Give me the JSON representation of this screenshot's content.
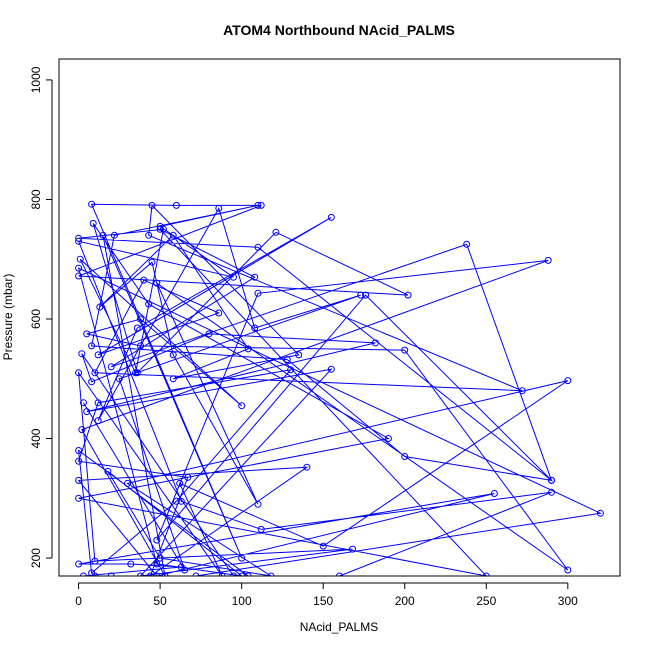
{
  "chart_data": {
    "type": "scatter",
    "title": "ATOM4 Northbound NAcid_PALMS",
    "xlabel": "NAcid_PALMS",
    "ylabel": "Pressure (mbar)",
    "xlim": [
      -12,
      332
    ],
    "ylim": [
      1035,
      170
    ],
    "y_reversed": true,
    "xticks": [
      0,
      50,
      100,
      150,
      200,
      250,
      300
    ],
    "yticks": [
      200,
      400,
      600,
      800,
      1000
    ],
    "grid": false,
    "legend": "none",
    "connect_points": true,
    "point_style": "open-circle",
    "color": "#0000ff",
    "series": [
      {
        "x": [
          20,
          10,
          3,
          63,
          32,
          0,
          255,
          48,
          0,
          140,
          44,
          67,
          0,
          12,
          130,
          60,
          8,
          0,
          104,
          72,
          320,
          0,
          48,
          100,
          18,
          50,
          118,
          30,
          300,
          150,
          62,
          88,
          0,
          10,
          168,
          38,
          155,
          5,
          182,
          80,
          8,
          2,
          95,
          160,
          290,
          112,
          63,
          0,
          95,
          50,
          110,
          22,
          8,
          128,
          200,
          290,
          176,
          48,
          110,
          288,
          2,
          53,
          15,
          100,
          8,
          60,
          112,
          0,
          202,
          121,
          36,
          9,
          43,
          190,
          0,
          250,
          50,
          108,
          20,
          238,
          290,
          110,
          0,
          52,
          35,
          1,
          100,
          38,
          5,
          38,
          200,
          300,
          48,
          110,
          58,
          45,
          13,
          58,
          104,
          58,
          135,
          45,
          43,
          272,
          10,
          40,
          86,
          12,
          155,
          36,
          12,
          86,
          108,
          173,
          25,
          65,
          3
        ],
        "y": [
          170,
          170,
          170,
          185,
          190,
          190,
          308,
          170,
          330,
          352,
          170,
          335,
          362,
          460,
          515,
          295,
          175,
          380,
          170,
          170,
          275,
          685,
          190,
          170,
          345,
          200,
          170,
          325,
          497,
          220,
          325,
          170,
          510,
          195,
          215,
          170,
          516,
          445,
          560,
          575,
          495,
          542,
          170,
          170,
          310,
          248,
          295,
          730,
          670,
          755,
          790,
          740,
          555,
          532,
          370,
          330,
          640,
          230,
          643,
          698,
          415,
          170,
          740,
          200,
          792,
          790,
          790,
          672,
          640,
          745,
          510,
          760,
          625,
          400,
          300,
          170,
          750,
          670,
          520,
          725,
          330,
          720,
          735,
          750,
          510,
          700,
          455,
          600,
          575,
          555,
          548,
          180,
          660,
          290,
          540,
          695,
          620,
          740,
          550,
          500,
          540,
          790,
          740,
          480,
          510,
          665,
          610,
          540,
          770,
          585,
          430,
          785,
          585,
          640,
          500,
          180,
          460
        ]
      }
    ]
  }
}
